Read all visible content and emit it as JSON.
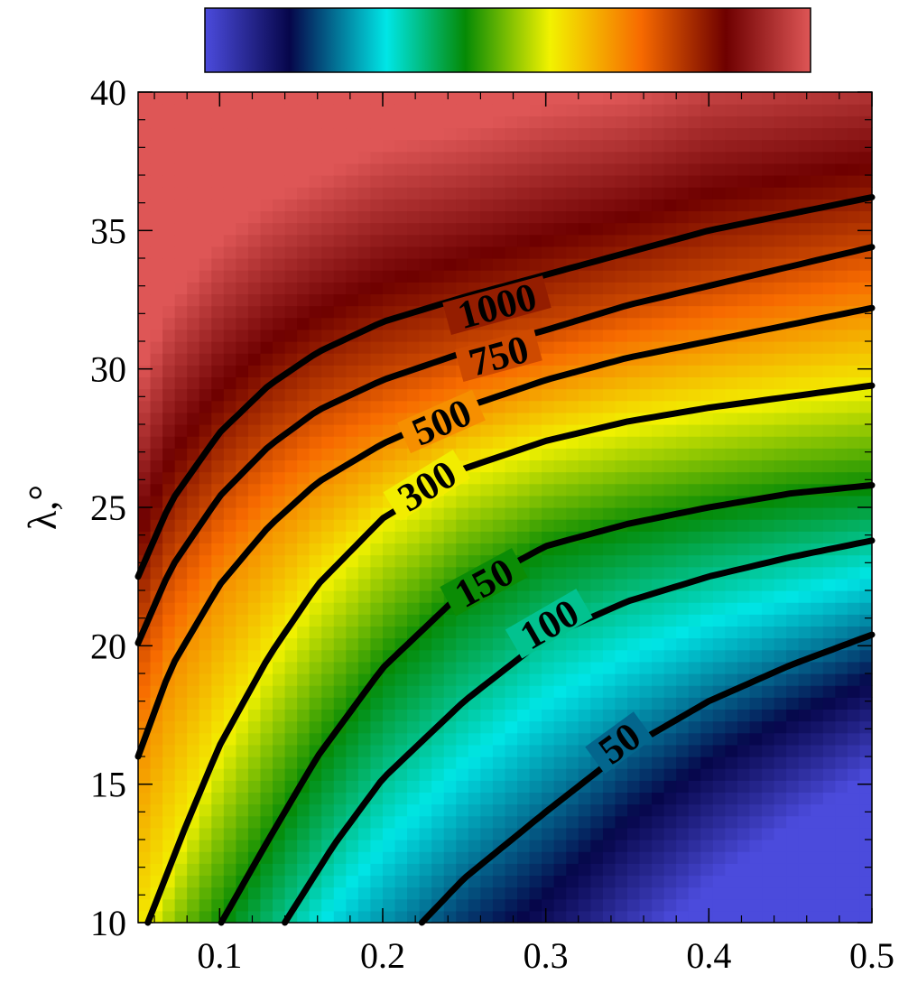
{
  "colormap": [
    "#4b4bdc",
    "#06064a",
    "#00e6e6",
    "#058a05",
    "#f2f200",
    "#f76a00",
    "#6e0000",
    "#de5656"
  ],
  "colormap_stops": [
    0.0,
    0.14,
    0.3,
    0.43,
    0.57,
    0.72,
    0.86,
    1.0
  ],
  "chart_data": {
    "type": "heatmap",
    "title": "",
    "xlabel": "",
    "ylabel": "λ,°",
    "xlim": [
      0.05,
      0.5
    ],
    "ylim": [
      10,
      40
    ],
    "x_ticks": [
      0.1,
      0.2,
      0.3,
      0.4,
      0.5
    ],
    "x_tick_labels": [
      "0.1",
      "0.2",
      "0.3",
      "0.4",
      "0.5"
    ],
    "y_ticks": [
      10,
      15,
      20,
      25,
      30,
      35,
      40
    ],
    "y_tick_labels": [
      "10",
      "15",
      "20",
      "25",
      "30",
      "35",
      "40"
    ],
    "colorbar": {
      "placement": "top",
      "tick_labels": []
    },
    "contours": [
      {
        "level": 50,
        "label": "50",
        "label_at": [
          0.345,
          16.5
        ],
        "points": [
          [
            0.224,
            10
          ],
          [
            0.25,
            11.6
          ],
          [
            0.3,
            14.0
          ],
          [
            0.35,
            16.3
          ],
          [
            0.4,
            18.0
          ],
          [
            0.45,
            19.3
          ],
          [
            0.5,
            20.4
          ]
        ]
      },
      {
        "level": 100,
        "label": "100",
        "label_at": [
          0.302,
          20.8
        ],
        "points": [
          [
            0.14,
            10
          ],
          [
            0.17,
            12.8
          ],
          [
            0.2,
            15.2
          ],
          [
            0.25,
            18.0
          ],
          [
            0.3,
            20.3
          ],
          [
            0.35,
            21.6
          ],
          [
            0.4,
            22.5
          ],
          [
            0.45,
            23.2
          ],
          [
            0.5,
            23.8
          ]
        ]
      },
      {
        "level": 150,
        "label": "150",
        "label_at": [
          0.262,
          22.3
        ],
        "points": [
          [
            0.101,
            10
          ],
          [
            0.13,
            13.0
          ],
          [
            0.16,
            16.0
          ],
          [
            0.2,
            19.2
          ],
          [
            0.25,
            22.0
          ],
          [
            0.3,
            23.6
          ],
          [
            0.35,
            24.4
          ],
          [
            0.4,
            25.0
          ],
          [
            0.45,
            25.5
          ],
          [
            0.5,
            25.8
          ]
        ]
      },
      {
        "level": 300,
        "label": "300",
        "label_at": [
          0.227,
          25.8
        ],
        "points": [
          [
            0.056,
            10
          ],
          [
            0.08,
            13.6
          ],
          [
            0.1,
            16.4
          ],
          [
            0.13,
            19.6
          ],
          [
            0.16,
            22.2
          ],
          [
            0.2,
            24.6
          ],
          [
            0.25,
            26.4
          ],
          [
            0.3,
            27.4
          ],
          [
            0.35,
            28.1
          ],
          [
            0.4,
            28.6
          ],
          [
            0.45,
            29.0
          ],
          [
            0.5,
            29.4
          ]
        ]
      },
      {
        "level": 500,
        "label": "500",
        "label_at": [
          0.236,
          28.1
        ],
        "points": [
          [
            0.05,
            16.0
          ],
          [
            0.07,
            19.2
          ],
          [
            0.1,
            22.2
          ],
          [
            0.13,
            24.3
          ],
          [
            0.16,
            25.9
          ],
          [
            0.2,
            27.3
          ],
          [
            0.25,
            28.6
          ],
          [
            0.3,
            29.6
          ],
          [
            0.35,
            30.4
          ],
          [
            0.4,
            31.0
          ],
          [
            0.45,
            31.6
          ],
          [
            0.5,
            32.2
          ]
        ]
      },
      {
        "level": 750,
        "label": "750",
        "label_at": [
          0.271,
          30.5
        ],
        "points": [
          [
            0.05,
            20.1
          ],
          [
            0.07,
            22.8
          ],
          [
            0.1,
            25.4
          ],
          [
            0.13,
            27.2
          ],
          [
            0.16,
            28.5
          ],
          [
            0.2,
            29.6
          ],
          [
            0.25,
            30.6
          ],
          [
            0.3,
            31.4
          ],
          [
            0.35,
            32.3
          ],
          [
            0.4,
            33.0
          ],
          [
            0.45,
            33.7
          ],
          [
            0.5,
            34.4
          ]
        ]
      },
      {
        "level": 1000,
        "label": "1000",
        "label_at": [
          0.27,
          32.3
        ],
        "points": [
          [
            0.05,
            22.5
          ],
          [
            0.07,
            25.2
          ],
          [
            0.1,
            27.7
          ],
          [
            0.13,
            29.4
          ],
          [
            0.16,
            30.6
          ],
          [
            0.2,
            31.7
          ],
          [
            0.25,
            32.6
          ],
          [
            0.3,
            33.4
          ],
          [
            0.35,
            34.2
          ],
          [
            0.4,
            35.0
          ],
          [
            0.45,
            35.6
          ],
          [
            0.5,
            36.2
          ]
        ]
      }
    ]
  }
}
